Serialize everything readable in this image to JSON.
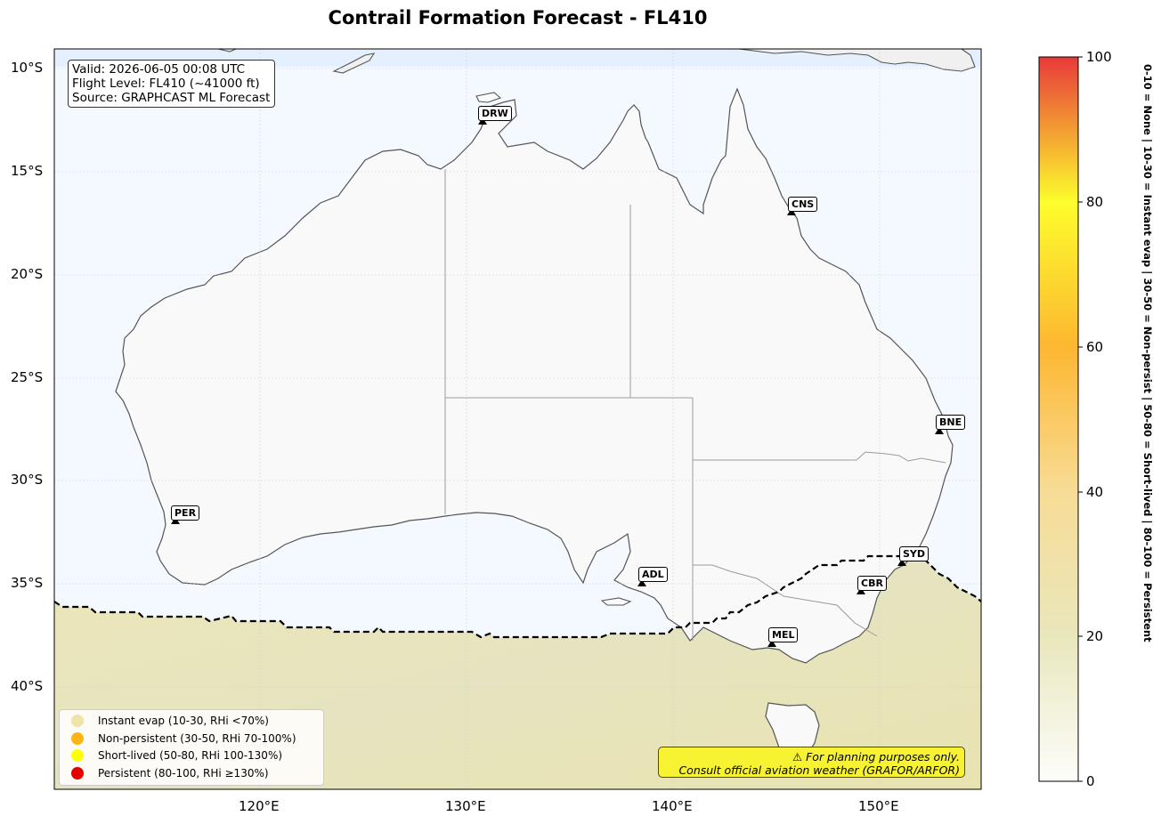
{
  "title": "Contrail Formation Forecast - FL410",
  "info": {
    "valid": "Valid: 2026-06-05 00:08 UTC",
    "flight_level": "Flight Level: FL410 (~41000 ft)",
    "source": "Source: GRAPHCAST ML Forecast"
  },
  "axes": {
    "lat_labels": [
      "10°S",
      "15°S",
      "20°S",
      "25°S",
      "30°S",
      "35°S",
      "40°S"
    ],
    "lon_labels": [
      "120°E",
      "130°E",
      "140°E",
      "150°E"
    ]
  },
  "airports": [
    {
      "code": "DRW",
      "name": "Darwin"
    },
    {
      "code": "CNS",
      "name": "Cairns"
    },
    {
      "code": "BNE",
      "name": "Brisbane"
    },
    {
      "code": "PER",
      "name": "Perth"
    },
    {
      "code": "ADL",
      "name": "Adelaide"
    },
    {
      "code": "SYD",
      "name": "Sydney"
    },
    {
      "code": "CBR",
      "name": "Canberra"
    },
    {
      "code": "MEL",
      "name": "Melbourne"
    }
  ],
  "legend": [
    {
      "label": "Instant evap (10-30, RHi <70%)",
      "color": "#efe3a8"
    },
    {
      "label": "Non-persistent (30-50, RHi 70-100%)",
      "color": "#fdb515"
    },
    {
      "label": "Short-lived (50-80, RHi 100-130%)",
      "color": "#ffff0a"
    },
    {
      "label": "Persistent (80-100, RHi ≥130%)",
      "color": "#e50000"
    }
  ],
  "warning": {
    "line1": "⚠ For planning purposes only.",
    "line2": "Consult official aviation weather (GRAFOR/ARFOR)"
  },
  "colorbar": {
    "ticks": [
      "0",
      "20",
      "40",
      "60",
      "80",
      "100"
    ],
    "label": "0-10 = None  |  10-30 = Instant evap  |  30-50 = Non-persist  |  50-80 = Short-lived  |  80-100 = Persistent",
    "colors": [
      "#fdfdfb",
      "#e9e7bc",
      "#f7dc96",
      "#fdb731",
      "#fdfd2c",
      "#e83a3a"
    ]
  },
  "colors": {
    "ocean": "#f4f9ff",
    "land": "#f9f9f9",
    "coast": "#555555",
    "contrail_field": "#e8e3b4",
    "persistence_boundary": "#000000"
  }
}
